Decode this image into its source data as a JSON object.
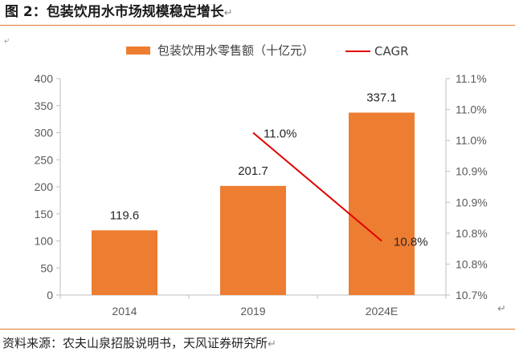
{
  "figure": {
    "title": "图 2：包装饮用水市场规模稳定增长",
    "source": "资料来源：农夫山泉招股说明书，天风证券研究所",
    "return_mark": "↵",
    "corner_mark": "⤶"
  },
  "chart_data": {
    "type": "bar",
    "categories": [
      "2014",
      "2019",
      "2024E"
    ],
    "series": [
      {
        "name": "包装饮用水零售额（十亿元）",
        "type": "bar",
        "axis": "left",
        "color": "#ed7d31",
        "values": [
          119.6,
          201.7,
          337.1
        ],
        "labels": [
          "119.6",
          "201.7",
          "337.1"
        ]
      },
      {
        "name": "CAGR",
        "type": "line",
        "axis": "right",
        "color": "#e00000",
        "points": [
          {
            "category": "2019",
            "value": 11.0,
            "label": "11.0%"
          },
          {
            "category": "2024E",
            "value": 10.8,
            "label": "10.8%"
          }
        ]
      }
    ],
    "left_axis": {
      "min": 0,
      "max": 400,
      "ticks": [
        "0",
        "50",
        "100",
        "150",
        "200",
        "250",
        "300",
        "350",
        "400"
      ]
    },
    "right_axis": {
      "min": 10.7,
      "max": 11.1,
      "ticks": [
        "10.7%",
        "10.8%",
        "10.8%",
        "10.9%",
        "10.9%",
        "11.0%",
        "11.0%",
        "11.1%"
      ]
    },
    "legend": "top",
    "grid": false
  }
}
